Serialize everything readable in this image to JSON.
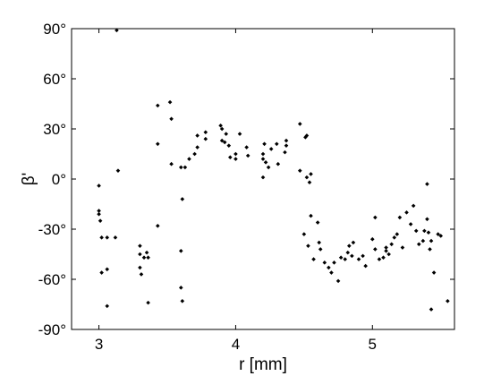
{
  "chart_data": {
    "type": "scatter",
    "title": "",
    "xlabel": "r [mm]",
    "ylabel": "β'",
    "xlim": [
      2.8,
      5.6
    ],
    "ylim": [
      -90,
      90
    ],
    "xticks": [
      3,
      4,
      5
    ],
    "xtick_labels": [
      "3",
      "4",
      "5"
    ],
    "yticks": [
      90,
      60,
      30,
      0,
      -30,
      -60,
      -90
    ],
    "ytick_labels": [
      "90°",
      "60°",
      "30°",
      "0°",
      "-30°",
      "-60°",
      "-90°"
    ],
    "grid": false,
    "marker_color": "#000000",
    "points": [
      [
        3.13,
        89
      ],
      [
        3.0,
        -4
      ],
      [
        3.0,
        -19
      ],
      [
        3.0,
        -21
      ],
      [
        3.01,
        -25
      ],
      [
        3.02,
        -35
      ],
      [
        3.02,
        -56
      ],
      [
        3.06,
        -35
      ],
      [
        3.06,
        -54
      ],
      [
        3.06,
        -76
      ],
      [
        3.12,
        -35
      ],
      [
        3.14,
        5
      ],
      [
        3.3,
        -40
      ],
      [
        3.3,
        -45
      ],
      [
        3.3,
        -53
      ],
      [
        3.31,
        -57
      ],
      [
        3.33,
        -47
      ],
      [
        3.35,
        -44
      ],
      [
        3.36,
        -47
      ],
      [
        3.36,
        -74
      ],
      [
        3.43,
        44
      ],
      [
        3.43,
        21
      ],
      [
        3.43,
        -28
      ],
      [
        3.52,
        46
      ],
      [
        3.53,
        36
      ],
      [
        3.53,
        9
      ],
      [
        3.6,
        7
      ],
      [
        3.6,
        -43
      ],
      [
        3.61,
        -12
      ],
      [
        3.6,
        -65
      ],
      [
        3.61,
        -73
      ],
      [
        3.63,
        7
      ],
      [
        3.66,
        12
      ],
      [
        3.7,
        15
      ],
      [
        3.72,
        19
      ],
      [
        3.72,
        26
      ],
      [
        3.78,
        24
      ],
      [
        3.78,
        28
      ],
      [
        3.89,
        32
      ],
      [
        3.9,
        30
      ],
      [
        3.9,
        23
      ],
      [
        3.92,
        22
      ],
      [
        3.93,
        27
      ],
      [
        3.95,
        20
      ],
      [
        3.96,
        13
      ],
      [
        4.0,
        12
      ],
      [
        4.0,
        15
      ],
      [
        4.03,
        27
      ],
      [
        4.08,
        19
      ],
      [
        4.09,
        14
      ],
      [
        4.2,
        1
      ],
      [
        4.2,
        12
      ],
      [
        4.2,
        15
      ],
      [
        4.21,
        21
      ],
      [
        4.22,
        10
      ],
      [
        4.24,
        7
      ],
      [
        4.26,
        18
      ],
      [
        4.3,
        21
      ],
      [
        4.31,
        9
      ],
      [
        4.36,
        16
      ],
      [
        4.37,
        23
      ],
      [
        4.37,
        20
      ],
      [
        4.47,
        33
      ],
      [
        4.47,
        5
      ],
      [
        4.51,
        25
      ],
      [
        4.52,
        26
      ],
      [
        4.52,
        1
      ],
      [
        4.54,
        -2
      ],
      [
        4.55,
        3
      ],
      [
        4.5,
        -33
      ],
      [
        4.53,
        -40
      ],
      [
        4.55,
        -22
      ],
      [
        4.57,
        -48
      ],
      [
        4.6,
        -26
      ],
      [
        4.61,
        -38
      ],
      [
        4.62,
        -42
      ],
      [
        4.65,
        -50
      ],
      [
        4.68,
        -53
      ],
      [
        4.7,
        -56
      ],
      [
        4.72,
        -50
      ],
      [
        4.75,
        -61
      ],
      [
        4.77,
        -47
      ],
      [
        4.8,
        -48
      ],
      [
        4.82,
        -44
      ],
      [
        4.83,
        -40
      ],
      [
        4.85,
        -46
      ],
      [
        4.86,
        -38
      ],
      [
        4.9,
        -48
      ],
      [
        4.93,
        -46
      ],
      [
        4.95,
        -52
      ],
      [
        5.0,
        -36
      ],
      [
        5.02,
        -23
      ],
      [
        5.02,
        -42
      ],
      [
        5.05,
        -48
      ],
      [
        5.08,
        -47
      ],
      [
        5.1,
        -41
      ],
      [
        5.1,
        -43
      ],
      [
        5.12,
        -45
      ],
      [
        5.14,
        -39
      ],
      [
        5.16,
        -35
      ],
      [
        5.18,
        -33
      ],
      [
        5.2,
        -23
      ],
      [
        5.22,
        -41
      ],
      [
        5.25,
        -20
      ],
      [
        5.28,
        -27
      ],
      [
        5.3,
        -16
      ],
      [
        5.32,
        -31
      ],
      [
        5.34,
        -39
      ],
      [
        5.37,
        -37
      ],
      [
        5.38,
        -31
      ],
      [
        5.4,
        -3
      ],
      [
        5.4,
        -24
      ],
      [
        5.41,
        -32
      ],
      [
        5.42,
        -42
      ],
      [
        5.43,
        -37
      ],
      [
        5.43,
        -78
      ],
      [
        5.45,
        -56
      ],
      [
        5.48,
        -33
      ],
      [
        5.5,
        -34
      ],
      [
        5.55,
        -73
      ]
    ]
  }
}
